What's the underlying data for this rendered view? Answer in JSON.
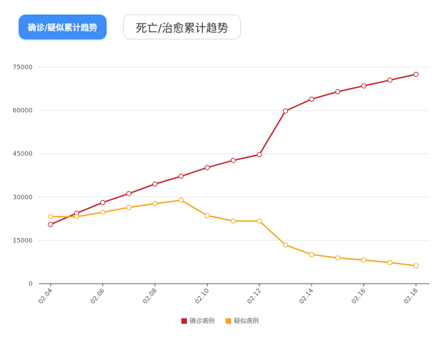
{
  "tabs": [
    {
      "label": "确诊/疑似累计趋势",
      "active": true
    },
    {
      "label": "死亡/治愈累计趋势",
      "active": false
    }
  ],
  "chart_data": {
    "type": "line",
    "categories": [
      "02.04",
      "02.05",
      "02.06",
      "02.07",
      "02.08",
      "02.09",
      "02.10",
      "02.11",
      "02.12",
      "02.13",
      "02.14",
      "02.15",
      "02.16",
      "02.17",
      "02.18"
    ],
    "x_tick_labels": [
      "02.04",
      "02.06",
      "02.08",
      "02.10",
      "02.12",
      "02.14",
      "02.16",
      "02.18"
    ],
    "ylim": [
      0,
      75000
    ],
    "y_ticks": [
      0,
      15000,
      30000,
      45000,
      60000,
      75000
    ],
    "grid": true,
    "legend_position": "bottom-center",
    "series": [
      {
        "name": "确诊病例",
        "color": "#c8252c",
        "values": [
          20500,
          24400,
          28100,
          31200,
          34500,
          37200,
          40200,
          42700,
          44700,
          59800,
          63900,
          66500,
          68500,
          70500,
          72500
        ]
      },
      {
        "name": "疑似病例",
        "color": "#f5a623",
        "values": [
          23200,
          23200,
          24700,
          26400,
          27700,
          28900,
          23600,
          21700,
          21700,
          13400,
          10100,
          8900,
          8200,
          7300,
          6200
        ]
      }
    ]
  }
}
